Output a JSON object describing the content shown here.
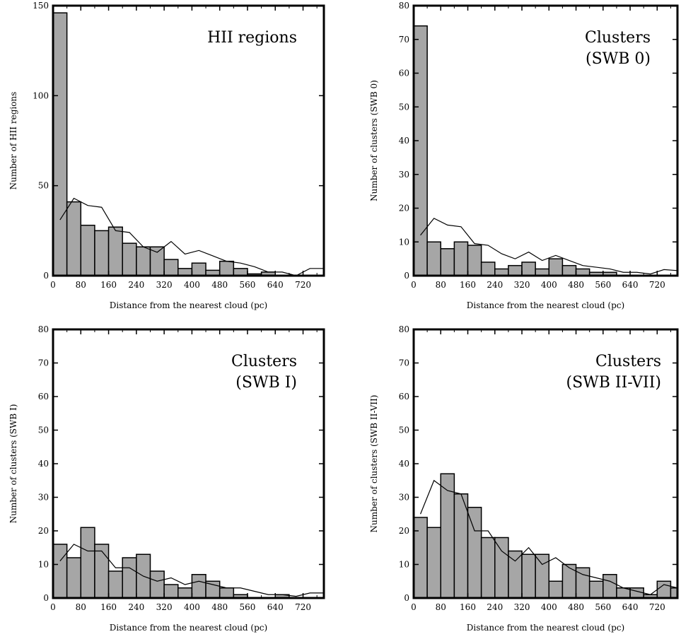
{
  "chart_data": [
    {
      "type": "bar",
      "title_lines": [
        "HII regions"
      ],
      "xlabel": "Distance from the nearest cloud (pc)",
      "ylabel": "Number of HII regions",
      "xlim": [
        0,
        780
      ],
      "ylim": [
        0,
        150
      ],
      "bin_width": 40,
      "x_ticks": [
        0,
        80,
        160,
        240,
        320,
        400,
        480,
        560,
        640,
        720
      ],
      "y_ticks": [
        0,
        50,
        100,
        150
      ],
      "values": [
        146,
        41,
        28,
        25,
        27,
        18,
        16,
        16,
        9,
        4,
        7,
        3,
        8,
        4,
        1,
        2,
        0,
        0,
        0
      ],
      "line_x": [
        20,
        60,
        100,
        140,
        180,
        220,
        260,
        300,
        340,
        380,
        420,
        460,
        500,
        540,
        580,
        620,
        660,
        700,
        740,
        780
      ],
      "line_y": [
        31,
        43,
        39,
        38,
        25,
        24,
        16,
        13,
        19,
        12,
        14,
        11,
        8,
        7,
        5,
        2,
        2,
        0,
        4,
        4
      ]
    },
    {
      "type": "bar",
      "title_lines": [
        "Clusters",
        "(SWB 0)"
      ],
      "xlabel": "Distance from the nearest cloud (pc)",
      "ylabel": "Number of clusters (SWB 0)",
      "xlim": [
        0,
        780
      ],
      "ylim": [
        0,
        80
      ],
      "bin_width": 40,
      "x_ticks": [
        0,
        80,
        160,
        240,
        320,
        400,
        480,
        560,
        640,
        720
      ],
      "y_ticks": [
        0,
        10,
        20,
        30,
        40,
        50,
        60,
        70,
        80
      ],
      "values": [
        74,
        10,
        8,
        10,
        9,
        4,
        2,
        3,
        4,
        2,
        5,
        3,
        2,
        1,
        1,
        0,
        0,
        0,
        0
      ],
      "line_x": [
        20,
        60,
        100,
        140,
        180,
        220,
        260,
        300,
        340,
        380,
        420,
        460,
        500,
        540,
        580,
        620,
        660,
        700,
        740,
        780
      ],
      "line_y": [
        12,
        17,
        15,
        14.5,
        9.5,
        9,
        6.5,
        5,
        7,
        4.5,
        6,
        4.5,
        3,
        2.5,
        2,
        1,
        1,
        0.5,
        1.8,
        1.5
      ]
    },
    {
      "type": "bar",
      "title_lines": [
        "Clusters",
        "(SWB I)"
      ],
      "xlabel": "Distance from the nearest cloud (pc)",
      "ylabel": "Number of clusters (SWB I)",
      "xlim": [
        0,
        780
      ],
      "ylim": [
        0,
        80
      ],
      "bin_width": 40,
      "x_ticks": [
        0,
        80,
        160,
        240,
        320,
        400,
        480,
        560,
        640,
        720
      ],
      "y_ticks": [
        0,
        10,
        20,
        30,
        40,
        50,
        60,
        70,
        80
      ],
      "values": [
        16,
        12,
        21,
        16,
        8,
        12,
        13,
        8,
        4,
        3,
        7,
        5,
        3,
        1,
        0,
        0,
        1,
        0,
        0
      ],
      "line_x": [
        20,
        60,
        100,
        140,
        180,
        220,
        260,
        300,
        340,
        380,
        420,
        460,
        500,
        540,
        580,
        620,
        660,
        700,
        740,
        780
      ],
      "line_y": [
        11,
        16,
        14,
        14,
        9,
        9,
        6.5,
        5,
        6,
        4,
        5,
        4,
        3,
        3,
        2,
        1,
        1,
        0.5,
        1.5,
        1.5
      ]
    },
    {
      "type": "bar",
      "title_lines": [
        "Clusters",
        "(SWB II-VII)"
      ],
      "xlabel": "Distance from the nearest cloud (pc)",
      "ylabel": "Number of clusters (SWB II-VII)",
      "xlim": [
        0,
        780
      ],
      "ylim": [
        0,
        80
      ],
      "bin_width": 40,
      "x_ticks": [
        0,
        80,
        160,
        240,
        320,
        400,
        480,
        560,
        640,
        720
      ],
      "y_ticks": [
        0,
        10,
        20,
        30,
        40,
        50,
        60,
        70,
        80
      ],
      "values": [
        24,
        21,
        37,
        31,
        27,
        18,
        18,
        14,
        13,
        13,
        5,
        10,
        9,
        5,
        7,
        3,
        3,
        1,
        5,
        3
      ],
      "line_x": [
        20,
        60,
        100,
        140,
        180,
        220,
        260,
        300,
        340,
        380,
        420,
        460,
        500,
        540,
        580,
        620,
        660,
        700,
        740,
        780
      ],
      "line_y": [
        25,
        35,
        32,
        31,
        20,
        20,
        14,
        11,
        15,
        10,
        12,
        9,
        7,
        6,
        5,
        3,
        2,
        1,
        4,
        3
      ]
    }
  ],
  "colors": {
    "bar_fill": "#a6a6a6",
    "bar_edge": "#000000",
    "line": "#000000",
    "frame": "#000000"
  }
}
